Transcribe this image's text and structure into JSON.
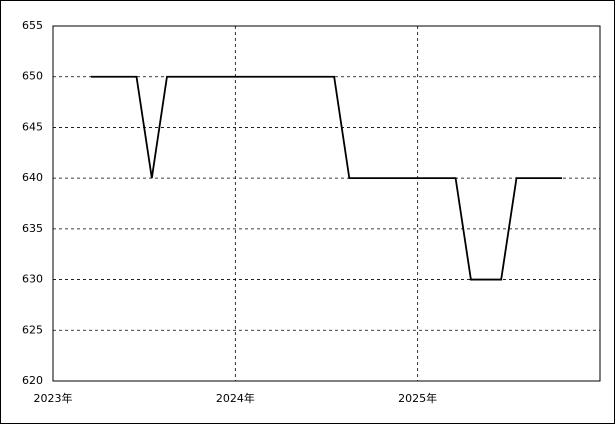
{
  "chart_data": {
    "type": "line",
    "x": [
      2023.208,
      2023.292,
      2023.375,
      2023.458,
      2023.542,
      2023.625,
      2023.708,
      2023.792,
      2023.875,
      2023.958,
      2024.042,
      2024.125,
      2024.208,
      2024.292,
      2024.375,
      2024.458,
      2024.542,
      2024.625,
      2024.708,
      2024.792,
      2024.875,
      2024.958,
      2025.042,
      2025.125,
      2025.208,
      2025.292,
      2025.375,
      2025.458,
      2025.542,
      2025.625,
      2025.708,
      2025.792
    ],
    "values": [
      650,
      650,
      650,
      650,
      640,
      650,
      650,
      650,
      650,
      650,
      650,
      650,
      650,
      650,
      650,
      650,
      650,
      640,
      640,
      640,
      640,
      640,
      640,
      640,
      640,
      630,
      630,
      630,
      640,
      640,
      640,
      640
    ],
    "color": "#000000",
    "xlim": [
      2023,
      2026
    ],
    "xticks": [
      {
        "value": 2023,
        "label": "2023年"
      },
      {
        "value": 2024,
        "label": "2024年"
      },
      {
        "value": 2025,
        "label": "2025年"
      }
    ],
    "ylim": [
      620,
      655
    ],
    "yticks": [
      620,
      625,
      630,
      635,
      640,
      645,
      650,
      655
    ],
    "grid": true
  }
}
